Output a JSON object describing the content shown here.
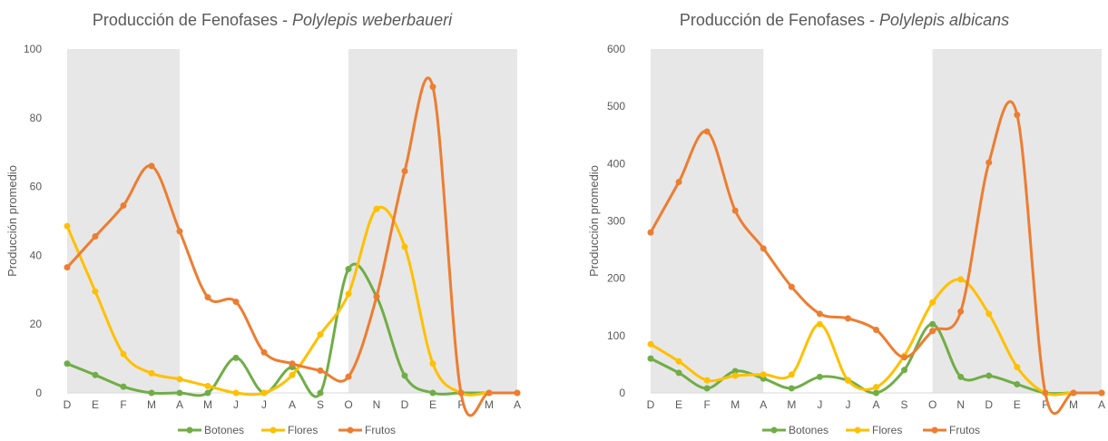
{
  "chart_data": [
    {
      "type": "line",
      "title_prefix": "Producción de Fenofases - ",
      "title_species": "Polylepis weberbaueri",
      "xlabel": "",
      "ylabel": "Producción promedio",
      "categories": [
        "D",
        "E",
        "F",
        "M",
        "A",
        "M",
        "J",
        "J",
        "A",
        "S",
        "O",
        "N",
        "D",
        "E",
        "F",
        "M",
        "A"
      ],
      "ylim": [
        0,
        100
      ],
      "yticks": [
        0,
        20,
        40,
        60,
        80,
        100
      ],
      "shaded_ranges": [
        [
          0,
          4
        ],
        [
          10,
          16
        ]
      ],
      "legend_position": "bottom",
      "grid": false,
      "series": [
        {
          "name": "Botones",
          "color": "#70AD47",
          "values": [
            8.5,
            5.2,
            1.8,
            0,
            0,
            0,
            10.2,
            0,
            7.5,
            0,
            36,
            28,
            5,
            0,
            0,
            0,
            0
          ]
        },
        {
          "name": "Flores",
          "color": "#FFC000",
          "values": [
            48.5,
            29.5,
            11.3,
            5.7,
            4,
            2,
            0,
            0,
            5.2,
            17,
            28.8,
            53.5,
            42.5,
            8.5,
            0,
            0,
            0
          ]
        },
        {
          "name": "Frutos",
          "color": "#ED7D31",
          "values": [
            36.5,
            45.5,
            54.5,
            66,
            47,
            27.8,
            26.5,
            11.8,
            8.5,
            6.5,
            4.7,
            28,
            64.5,
            89,
            0,
            0,
            0
          ]
        }
      ]
    },
    {
      "type": "line",
      "title_prefix": "Producción de Fenofases - ",
      "title_species": "Polylepis albicans",
      "xlabel": "",
      "ylabel": "Producción promedio",
      "categories": [
        "D",
        "E",
        "F",
        "M",
        "A",
        "M",
        "J",
        "J",
        "A",
        "S",
        "O",
        "N",
        "D",
        "E",
        "F",
        "M",
        "A"
      ],
      "ylim": [
        0,
        600
      ],
      "yticks": [
        0,
        100,
        200,
        300,
        400,
        500,
        600
      ],
      "shaded_ranges": [
        [
          0,
          4
        ],
        [
          10,
          16
        ]
      ],
      "legend_position": "bottom",
      "grid": false,
      "series": [
        {
          "name": "Botones",
          "color": "#70AD47",
          "values": [
            60,
            35,
            8,
            38,
            25,
            8,
            28,
            22,
            0,
            40,
            120,
            28,
            30,
            15,
            0,
            0,
            0
          ]
        },
        {
          "name": "Flores",
          "color": "#FFC000",
          "values": [
            85,
            55,
            22,
            30,
            32,
            32,
            120,
            22,
            10,
            65,
            158,
            198,
            138,
            45,
            0,
            0,
            0
          ]
        },
        {
          "name": "Frutos",
          "color": "#ED7D31",
          "values": [
            280,
            368,
            456,
            318,
            252,
            185,
            138,
            130,
            110,
            62,
            108,
            142,
            402,
            485,
            0,
            0,
            0
          ]
        }
      ]
    }
  ]
}
